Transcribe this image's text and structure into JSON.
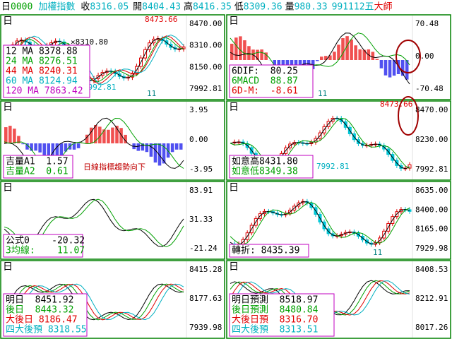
{
  "header": {
    "items": [
      {
        "text": "日",
        "color": "#000000"
      },
      {
        "text": "0000",
        "color": "#00a000"
      },
      {
        "text": "加權指數",
        "color": "#00b0c0"
      },
      {
        "text": "收",
        "color": "#000000"
      },
      {
        "text": "8316.05",
        "color": "#00b0c0"
      },
      {
        "text": "開",
        "color": "#000000"
      },
      {
        "text": "8404.43",
        "color": "#00b0c0"
      },
      {
        "text": "高",
        "color": "#000000"
      },
      {
        "text": "8416.35",
        "color": "#00b0c0"
      },
      {
        "text": "低",
        "color": "#000000"
      },
      {
        "text": "8309.36",
        "color": "#00b0c0"
      },
      {
        "text": "量",
        "color": "#000000"
      },
      {
        "text": "980.33",
        "color": "#00b0c0"
      },
      {
        "text": "991112五",
        "color": "#00b0c0"
      },
      {
        "text": "大師",
        "color": "#e00000"
      }
    ]
  },
  "panels": [
    {
      "label": "日",
      "axis": [
        "8470.00",
        "8310.00",
        "8150.00",
        "7992.81"
      ],
      "legend": [
        {
          "text": "12 MA 8378.88",
          "color": "#000000"
        },
        {
          "text": "24 MA 8276.51",
          "color": "#00a000"
        },
        {
          "text": "44 MA 8240.31",
          "color": "#e00000"
        },
        {
          "text": "60 MA 8124.94",
          "color": "#00b0c0"
        },
        {
          "text": "120 MA 7863.42",
          "color": "#c000c0"
        }
      ],
      "notes": [
        {
          "text": "8473.66",
          "color": "#e00000"
        },
        {
          "text": "×8310.80",
          "color": "#000000"
        },
        {
          "text": "7992.81",
          "color": "#00b0c0"
        },
        {
          "text": "11",
          "color": "#008080"
        }
      ]
    },
    {
      "label": "日",
      "axis": [
        "70.48",
        "0.00",
        "-70.48"
      ],
      "legend": [
        {
          "text": "6DIF:  80.25",
          "color": "#000000"
        },
        {
          "text": "6MACD  88.87",
          "color": "#00a000"
        },
        {
          "text": "6D-M:  -8.61",
          "color": "#e00000"
        }
      ],
      "notes": [
        {
          "text": "11",
          "color": "#008080"
        }
      ]
    },
    {
      "label": "日",
      "axis": [
        "3.95",
        "0.00",
        "-3.95"
      ],
      "legend": [
        {
          "text": "吉量A1  1.57",
          "color": "#000000"
        },
        {
          "text": "吉量A2  0.61",
          "color": "#00a000"
        }
      ],
      "notes": [
        {
          "text": "日線指標趨勢向下",
          "color": "#c00000"
        }
      ]
    },
    {
      "label": "日",
      "axis": [
        "8470.00",
        "8230.00",
        "7992.81"
      ],
      "legend": [
        {
          "text": "如意高8431.80",
          "color": "#000000"
        },
        {
          "text": "如意低8349.38",
          "color": "#00a000"
        }
      ],
      "notes": [
        {
          "text": "8473.66",
          "color": "#e00000"
        },
        {
          "text": "7992.81",
          "color": "#00b0c0"
        }
      ]
    },
    {
      "label": "日",
      "axis": [
        "83.91",
        "31.33",
        "-21.24"
      ],
      "legend": [
        {
          "text": "公式0    -20.32",
          "color": "#000000"
        },
        {
          "text": "3均線:    11.07",
          "color": "#00a000"
        }
      ],
      "notes": []
    },
    {
      "label": "日",
      "axis": [
        "8635.00",
        "8400.00",
        "8165.00",
        "7929.98"
      ],
      "legend": [
        {
          "text": "轉折: 8435.39",
          "color": "#000000"
        }
      ],
      "notes": [
        {
          "text": "11",
          "color": "#008080"
        }
      ]
    },
    {
      "label": "日",
      "axis": [
        "8415.28",
        "8177.63",
        "7939.98"
      ],
      "legend": [
        {
          "text": "明日  8451.92",
          "color": "#000000"
        },
        {
          "text": "後日  8443.32",
          "color": "#00a000"
        },
        {
          "text": "大後日 8186.47",
          "color": "#e00000"
        },
        {
          "text": "四大後預 8318.55",
          "color": "#00b0c0"
        }
      ],
      "notes": []
    },
    {
      "label": "日",
      "axis": [
        "8408.53",
        "8212.91",
        "8017.26"
      ],
      "legend": [
        {
          "text": "明日預測  8518.97",
          "color": "#000000"
        },
        {
          "text": "後日預測  8480.84",
          "color": "#00a000"
        },
        {
          "text": "大後日預  8316.70",
          "color": "#e00000"
        },
        {
          "text": "四大後預  8313.51",
          "color": "#00b0c0"
        }
      ],
      "notes": []
    }
  ]
}
